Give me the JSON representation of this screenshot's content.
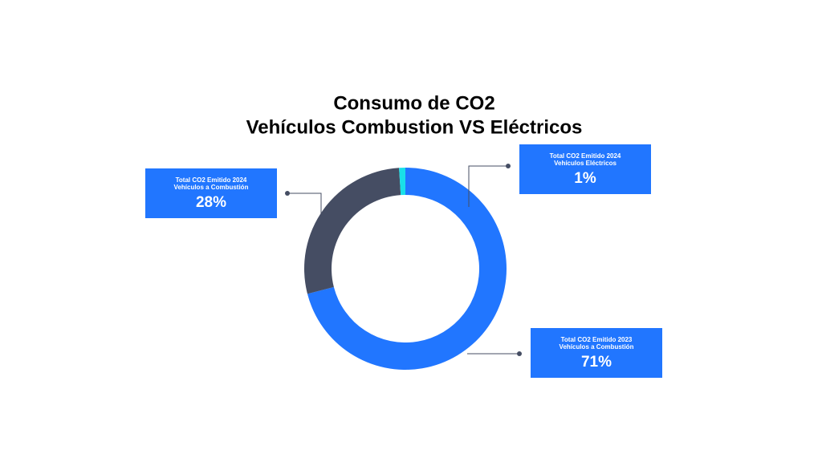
{
  "chart_data": {
    "type": "donut",
    "title": "Consumo de CO2",
    "subtitle": "Vehículos Combustion VS Eléctricos",
    "categories": [
      [
        "Total CO2 Emitido 2023",
        "Vehículos a Combustión"
      ],
      [
        "Total CO2 Emitido 2024",
        "Vehículos a Combustión"
      ],
      [
        "Total CO2 Emitido 2024",
        "Vehículos Eléctricos"
      ]
    ],
    "values": [
      71,
      28,
      1
    ],
    "value_labels": [
      "71%",
      "28%",
      "1%"
    ],
    "colors": [
      "#2176ff",
      "#454d63",
      "#19e0e8"
    ],
    "label_color": "#2176ff"
  }
}
